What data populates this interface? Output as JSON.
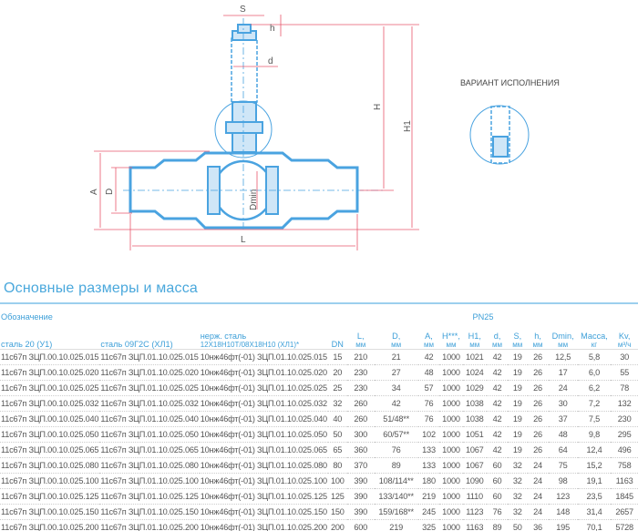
{
  "drawing": {
    "labels": {
      "S": "S",
      "h": "h",
      "d": "d",
      "H": "H",
      "H1": "H1",
      "A": "A",
      "D": "D",
      "Dmin": "Dmin",
      "L": "L"
    },
    "variant_label": "ВАРИАНТ ИСПОЛНЕНИЯ",
    "colors": {
      "body": "#4aa3e0",
      "fill": "#cfe6f7",
      "dimension": "#e8566b"
    }
  },
  "section_title": "Основные размеры и масса",
  "table": {
    "group_header": "Обозначение",
    "pressure_header": "PN25",
    "columns": [
      {
        "name": "сталь 20 (У1)",
        "unit": ""
      },
      {
        "name": "сталь 09Г2С (ХЛ1)",
        "unit": ""
      },
      {
        "name": "нерж. сталь",
        "unit": "12Х18Н10Т/08Х18Н10 (ХЛ1)*"
      },
      {
        "name": "DN",
        "unit": ""
      },
      {
        "name": "L,",
        "unit": "мм"
      },
      {
        "name": "D,",
        "unit": "мм"
      },
      {
        "name": "A,",
        "unit": "мм"
      },
      {
        "name": "H***,",
        "unit": "мм"
      },
      {
        "name": "H1,",
        "unit": "мм"
      },
      {
        "name": "d,",
        "unit": "мм"
      },
      {
        "name": "S,",
        "unit": "мм"
      },
      {
        "name": "h,",
        "unit": "мм"
      },
      {
        "name": "Dmin,",
        "unit": "мм"
      },
      {
        "name": "Масса,",
        "unit": "кг"
      },
      {
        "name": "Kv,",
        "unit": "м³/ч"
      }
    ],
    "rows": [
      [
        "11с67п ЗЦП.00.10.025.015",
        "11с67п ЗЦП.01.10.025.015",
        "10нж46фт(-01) ЗЦП.01.10.025.015",
        "15",
        "210",
        "21",
        "42",
        "1000",
        "1021",
        "42",
        "19",
        "26",
        "12,5",
        "5,8",
        "30"
      ],
      [
        "11с67п ЗЦП.00.10.025.020",
        "11с67п ЗЦП.01.10.025.020",
        "10нж46фт(-01) ЗЦП.01.10.025.020",
        "20",
        "230",
        "27",
        "48",
        "1000",
        "1024",
        "42",
        "19",
        "26",
        "17",
        "6,0",
        "55"
      ],
      [
        "11с67п ЗЦП.00.10.025.025",
        "11с67п ЗЦП.01.10.025.025",
        "10нж46фт(-01) ЗЦП.01.10.025.025",
        "25",
        "230",
        "34",
        "57",
        "1000",
        "1029",
        "42",
        "19",
        "26",
        "24",
        "6,2",
        "78"
      ],
      [
        "11с67п ЗЦП.00.10.025.032",
        "11с67п ЗЦП.01.10.025.032",
        "10нж46фт(-01) ЗЦП.01.10.025.032",
        "32",
        "260",
        "42",
        "76",
        "1000",
        "1038",
        "42",
        "19",
        "26",
        "30",
        "7,2",
        "132"
      ],
      [
        "11с67п ЗЦП.00.10.025.040",
        "11с67п ЗЦП.01.10.025.040",
        "10нж46фт(-01) ЗЦП.01.10.025.040",
        "40",
        "260",
        "51/48**",
        "76",
        "1000",
        "1038",
        "42",
        "19",
        "26",
        "37",
        "7,5",
        "230"
      ],
      [
        "11с67п ЗЦП.00.10.025.050",
        "11с67п ЗЦП.01.10.025.050",
        "10нж46фт(-01) ЗЦП.01.10.025.050",
        "50",
        "300",
        "60/57**",
        "102",
        "1000",
        "1051",
        "42",
        "19",
        "26",
        "48",
        "9,8",
        "295"
      ],
      [
        "11с67п ЗЦП.00.10.025.065",
        "11с67п ЗЦП.01.10.025.065",
        "10нж46фт(-01) ЗЦП.01.10.025.065",
        "65",
        "360",
        "76",
        "133",
        "1000",
        "1067",
        "42",
        "19",
        "26",
        "64",
        "12,4",
        "496"
      ],
      [
        "11с67п ЗЦП.00.10.025.080",
        "11с67п ЗЦП.01.10.025.080",
        "10нж46фт(-01) ЗЦП.01.10.025.080",
        "80",
        "370",
        "89",
        "133",
        "1000",
        "1067",
        "60",
        "32",
        "24",
        "75",
        "15,2",
        "758"
      ],
      [
        "11с67п ЗЦП.00.10.025.100",
        "11с67п ЗЦП.01.10.025.100",
        "10нж46фт(-01) ЗЦП.01.10.025.100",
        "100",
        "390",
        "108/114**",
        "180",
        "1000",
        "1090",
        "60",
        "32",
        "24",
        "98",
        "19,1",
        "1163"
      ],
      [
        "11с67п ЗЦП.00.10.025.125",
        "11с67п ЗЦП.01.10.025.125",
        "10нж46фт(-01) ЗЦП.01.10.025.125",
        "125",
        "390",
        "133/140**",
        "219",
        "1000",
        "1110",
        "60",
        "32",
        "24",
        "123",
        "23,5",
        "1845"
      ],
      [
        "11с67п ЗЦП.00.10.025.150",
        "11с67п ЗЦП.01.10.025.150",
        "10нж46фт(-01) ЗЦП.01.10.025.150",
        "150",
        "390",
        "159/168**",
        "245",
        "1000",
        "1123",
        "76",
        "32",
        "24",
        "148",
        "31,4",
        "2657"
      ],
      [
        "11с67п ЗЦП.00.10.025.200",
        "11с67п ЗЦП.01.10.025.200",
        "10нж46фт(-01) ЗЦП.01.10.025.200",
        "200",
        "600",
        "219",
        "325",
        "1000",
        "1163",
        "89",
        "50",
        "36",
        "195",
        "70,1",
        "5728"
      ]
    ]
  }
}
